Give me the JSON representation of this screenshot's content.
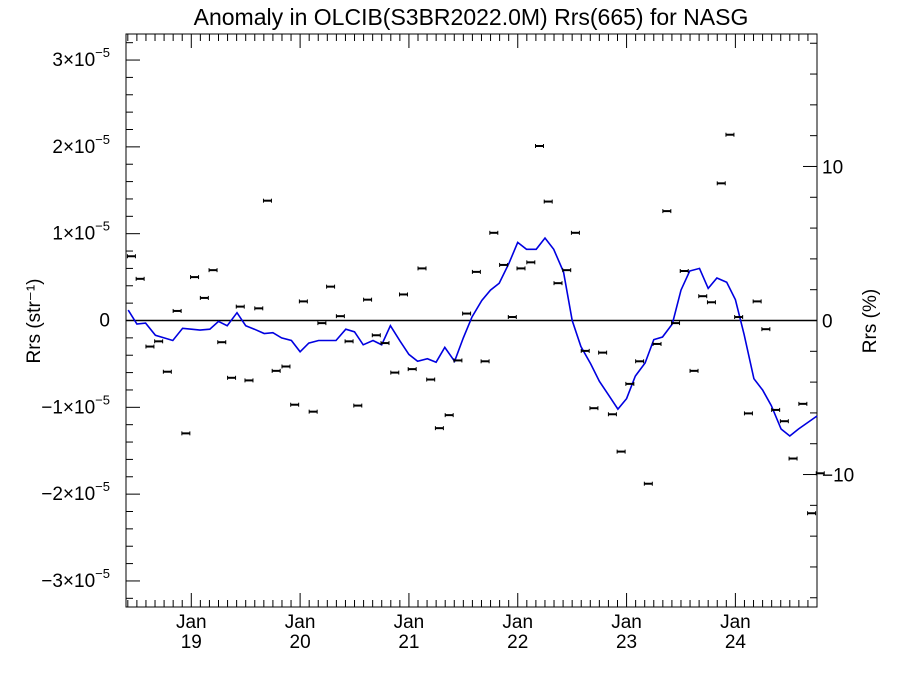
{
  "chart_data": {
    "type": "line",
    "title": "Anomaly in OLCIB(S3BR2022.0M) Rrs(665) for NASG",
    "ylabel": "Rrs (str⁻¹)",
    "y2label": "Rrs (%)",
    "ylim": [
      -3.3e-05,
      3.3e-05
    ],
    "y2lim": [
      -18.6,
      18.6
    ],
    "xlim": [
      2018.4,
      2024.75
    ],
    "x_ticks": [
      {
        "x": 2019.0,
        "month": "Jan",
        "year": "19"
      },
      {
        "x": 2020.0,
        "month": "Jan",
        "year": "20"
      },
      {
        "x": 2021.0,
        "month": "Jan",
        "year": "21"
      },
      {
        "x": 2022.0,
        "month": "Jan",
        "year": "22"
      },
      {
        "x": 2023.0,
        "month": "Jan",
        "year": "23"
      },
      {
        "x": 2024.0,
        "month": "Jan",
        "year": "24"
      }
    ],
    "y_ticks": [
      {
        "v": 3e-05,
        "mant": "3",
        "exp": "−5"
      },
      {
        "v": 2e-05,
        "mant": "2",
        "exp": "−5"
      },
      {
        "v": 1e-05,
        "mant": "1",
        "exp": "−5"
      },
      {
        "v": 0,
        "mant": "0",
        "exp": ""
      },
      {
        "v": -1e-05,
        "mant": "−1",
        "exp": "−5"
      },
      {
        "v": -2e-05,
        "mant": "−2",
        "exp": "−5"
      },
      {
        "v": -3e-05,
        "mant": "−3",
        "exp": "−5"
      }
    ],
    "y2_ticks": [
      {
        "v": 10,
        "label": "10"
      },
      {
        "v": 0,
        "label": "0"
      },
      {
        "v": -10,
        "label": "−10"
      }
    ],
    "zero_line": true,
    "series": [
      {
        "kind": "line",
        "color": "#0000e0",
        "x": [
          2018.42,
          2018.5,
          2018.58,
          2018.67,
          2018.75,
          2018.83,
          2018.92,
          2019.0,
          2019.08,
          2019.17,
          2019.25,
          2019.33,
          2019.42,
          2019.5,
          2019.58,
          2019.67,
          2019.75,
          2019.83,
          2019.92,
          2020.0,
          2020.08,
          2020.17,
          2020.25,
          2020.33,
          2020.42,
          2020.5,
          2020.58,
          2020.67,
          2020.75,
          2020.83,
          2020.92,
          2021.0,
          2021.08,
          2021.17,
          2021.25,
          2021.33,
          2021.42,
          2021.5,
          2021.58,
          2021.67,
          2021.75,
          2021.83,
          2021.92,
          2022.0,
          2022.08,
          2022.17,
          2022.25,
          2022.33,
          2022.42,
          2022.5,
          2022.58,
          2022.67,
          2022.75,
          2022.83,
          2022.92,
          2023.0,
          2023.08,
          2023.17,
          2023.25,
          2023.33,
          2023.42,
          2023.5,
          2023.58,
          2023.67,
          2023.75,
          2023.83,
          2023.92,
          2024.0,
          2024.08,
          2024.17,
          2024.25,
          2024.33,
          2024.42,
          2024.5,
          2024.58,
          2024.67,
          2024.75
        ],
        "y": [
          1.2e-06,
          -4e-07,
          -3e-07,
          -1.7e-06,
          -2e-06,
          -2.3e-06,
          -9e-07,
          -1e-06,
          -1.1e-06,
          -1e-06,
          -1e-07,
          -6e-07,
          9e-07,
          -6e-07,
          -1e-06,
          -1.5e-06,
          -1.4e-06,
          -2e-06,
          -2.3e-06,
          -3.6e-06,
          -2.6e-06,
          -2.3e-06,
          -2.3e-06,
          -2.3e-06,
          -1e-06,
          -1.3e-06,
          -2.8e-06,
          -2.3e-06,
          -2.8e-06,
          -6e-07,
          -2.4e-06,
          -3.9e-06,
          -4.7e-06,
          -4.4e-06,
          -4.8e-06,
          -3.1e-06,
          -4.7e-06,
          -2e-06,
          4e-07,
          2.3e-06,
          3.5e-06,
          4.3e-06,
          6.6e-06,
          9e-06,
          8.2e-06,
          8.2e-06,
          9.5e-06,
          8.2e-06,
          5.6e-06,
          0.0,
          -3e-06,
          -5e-06,
          -7e-06,
          -8.5e-06,
          -1.02e-05,
          -9e-06,
          -6.4e-06,
          -4.9e-06,
          -2.2e-06,
          -1.9e-06,
          -4e-07,
          3.5e-06,
          5.7e-06,
          6e-06,
          3.7e-06,
          4.9e-06,
          4.4e-06,
          2.4e-06,
          -1.6e-06,
          -6.7e-06,
          -8e-06,
          -9.8e-06,
          -1.25e-05,
          -1.33e-05,
          -1.25e-05,
          -1.17e-05,
          -1.1e-05
        ]
      },
      {
        "kind": "points",
        "color": "#000000",
        "x": [
          2018.45,
          2018.53,
          2018.62,
          2018.7,
          2018.78,
          2018.87,
          2018.95,
          2019.03,
          2019.12,
          2019.2,
          2019.28,
          2019.37,
          2019.45,
          2019.53,
          2019.62,
          2019.7,
          2019.78,
          2019.87,
          2019.95,
          2020.03,
          2020.12,
          2020.2,
          2020.28,
          2020.37,
          2020.45,
          2020.53,
          2020.62,
          2020.7,
          2020.78,
          2020.87,
          2020.95,
          2021.03,
          2021.12,
          2021.2,
          2021.28,
          2021.37,
          2021.45,
          2021.53,
          2021.62,
          2021.7,
          2021.78,
          2021.87,
          2021.95,
          2022.03,
          2022.12,
          2022.2,
          2022.28,
          2022.37,
          2022.45,
          2022.53,
          2022.62,
          2022.7,
          2022.78,
          2022.87,
          2022.95,
          2023.03,
          2023.12,
          2023.2,
          2023.28,
          2023.37,
          2023.45,
          2023.53,
          2023.62,
          2023.7,
          2023.78,
          2023.87,
          2023.95,
          2024.03,
          2024.12,
          2024.2,
          2024.28,
          2024.37,
          2024.45,
          2024.53,
          2024.62,
          2024.7,
          2024.78
        ],
        "y": [
          7.4e-06,
          4.8e-06,
          -3e-06,
          -2.4e-06,
          -5.9e-06,
          1.1e-06,
          -1.3e-05,
          5e-06,
          2.6e-06,
          5.8e-06,
          -2.5e-06,
          -6.6e-06,
          1.6e-06,
          -6.9e-06,
          1.4e-06,
          1.38e-05,
          -5.8e-06,
          -5.3e-06,
          -9.7e-06,
          2.2e-06,
          -1.05e-05,
          -3e-07,
          3.9e-06,
          5e-07,
          -2.4e-06,
          -9.8e-06,
          2.4e-06,
          -1.7e-06,
          -2.6e-06,
          -6e-06,
          3e-06,
          -5.6e-06,
          6e-06,
          -6.8e-06,
          -1.24e-05,
          -1.09e-05,
          -4.6e-06,
          8e-07,
          5.6e-06,
          -4.7e-06,
          1.01e-05,
          6.4e-06,
          4e-07,
          6e-06,
          6.7e-06,
          2.01e-05,
          1.37e-05,
          4.3e-06,
          5.8e-06,
          1.01e-05,
          -3.5e-06,
          -1.01e-05,
          -3.7e-06,
          -1.08e-05,
          -1.51e-05,
          -7.3e-06,
          -4.7e-06,
          -1.88e-05,
          -2.7e-06,
          1.26e-05,
          -3e-07,
          5.7e-06,
          -5.8e-06,
          2.8e-06,
          2.1e-06,
          1.58e-05,
          2.14e-05,
          4e-07,
          -1.07e-05,
          2.2e-06,
          -1e-06,
          -1.03e-05,
          -1.16e-05,
          -1.59e-05,
          -9.6e-06,
          -2.22e-05,
          -1.76e-05
        ]
      }
    ]
  }
}
